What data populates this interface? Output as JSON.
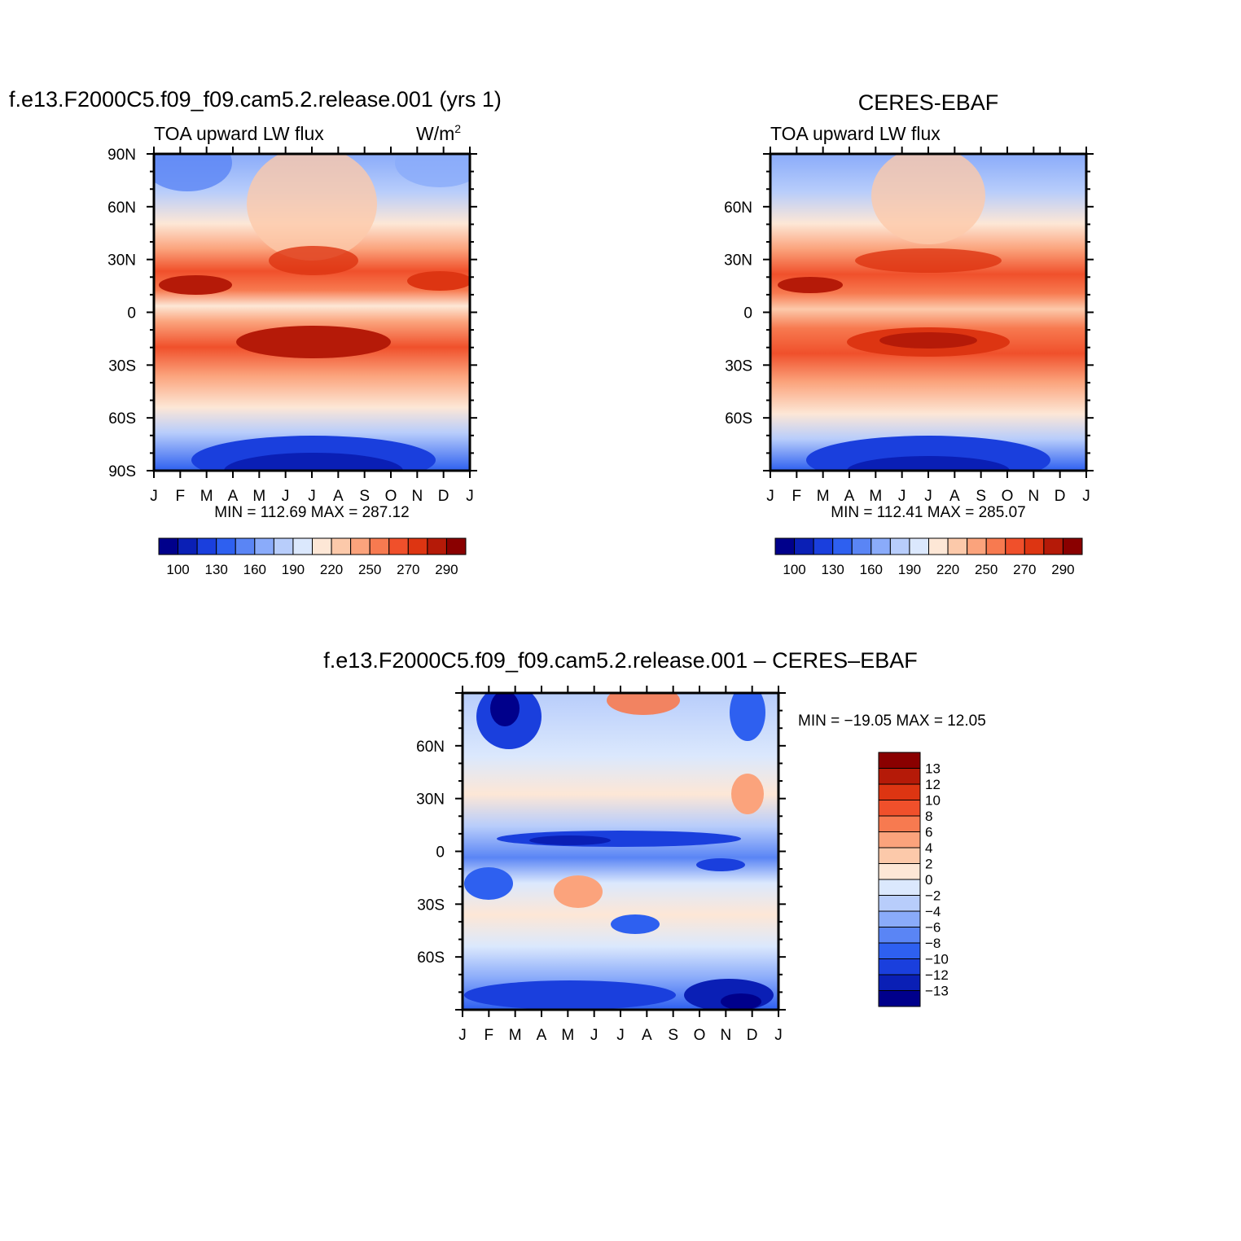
{
  "chart_data": [
    {
      "type": "heatmap",
      "title": "f.e13.F2000C5.f09_f09.cam5.2.release.001 (yrs 1)",
      "left_subtitle": "TOA upward LW flux",
      "right_subtitle": "W/m",
      "right_subtitle_sup": "2",
      "x_ticks": [
        "J",
        "F",
        "M",
        "A",
        "M",
        "J",
        "J",
        "A",
        "S",
        "O",
        "N",
        "D",
        "J"
      ],
      "y_ticks": [
        "90N",
        "60N",
        "30N",
        "0",
        "30S",
        "60S",
        "90S"
      ],
      "stats": "MIN = 112.69  MAX = 287.12",
      "xlim": [
        0,
        12
      ],
      "ylim": [
        -90,
        90
      ],
      "z_summary": {
        "min": 112.69,
        "max": 287.12
      },
      "colorbar_labels": [
        "100",
        "130",
        "160",
        "190",
        "220",
        "250",
        "270",
        "290"
      ],
      "colors": [
        "#00008b",
        "#0a1fb5",
        "#1a3fdd",
        "#2e60f0",
        "#5a85f5",
        "#8aabfa",
        "#b8cdfb",
        "#dbe8fd",
        "#fde7d6",
        "#fcc9aa",
        "#fba37c",
        "#f77a50",
        "#f0502b",
        "#dd3512",
        "#b51a08",
        "#8a0000"
      ]
    },
    {
      "type": "heatmap",
      "title": "CERES-EBAF",
      "left_subtitle": "TOA upward LW flux",
      "x_ticks": [
        "J",
        "F",
        "M",
        "A",
        "M",
        "J",
        "J",
        "A",
        "S",
        "O",
        "N",
        "D",
        "J"
      ],
      "y_ticks": [
        "60N",
        "30N",
        "0",
        "30S",
        "60S"
      ],
      "stats": "MIN = 112.41  MAX = 285.07",
      "xlim": [
        0,
        12
      ],
      "ylim": [
        -90,
        90
      ],
      "z_summary": {
        "min": 112.41,
        "max": 285.07
      },
      "colorbar_labels": [
        "100",
        "130",
        "160",
        "190",
        "220",
        "250",
        "270",
        "290"
      ]
    },
    {
      "type": "heatmap",
      "title": "f.e13.F2000C5.f09_f09.cam5.2.release.001 – CERES–EBAF",
      "x_ticks": [
        "J",
        "F",
        "M",
        "A",
        "M",
        "J",
        "J",
        "A",
        "S",
        "O",
        "N",
        "D",
        "J"
      ],
      "y_ticks": [
        "60N",
        "30N",
        "0",
        "30S",
        "60S"
      ],
      "stats": "MIN = −19.05 MAX =   12.05",
      "xlim": [
        0,
        12
      ],
      "ylim": [
        -90,
        90
      ],
      "z_summary": {
        "min": -19.05,
        "max": 12.05
      },
      "colorbar_labels": [
        "13",
        "12",
        "10",
        "8",
        "6",
        "4",
        "2",
        "0",
        "−2",
        "−4",
        "−6",
        "−8",
        "−10",
        "−12",
        "−13"
      ],
      "colors": [
        "#8a0000",
        "#b51a08",
        "#dd3512",
        "#f0502b",
        "#f77a50",
        "#fba37c",
        "#fcc9aa",
        "#fde7d6",
        "#dbe8fd",
        "#b8cdfb",
        "#8aabfa",
        "#5a85f5",
        "#2e60f0",
        "#1a3fdd",
        "#0a1fb5",
        "#00008b"
      ]
    }
  ]
}
